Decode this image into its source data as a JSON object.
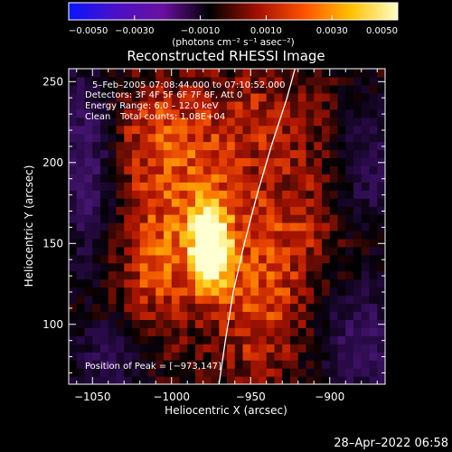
{
  "colorbar": {
    "ticks": [
      "-0.0050",
      "-0.0030",
      "-0.0010",
      "0.0010",
      "0.0030",
      "0.0050"
    ],
    "unit_label": "(photons cm⁻² s⁻¹ asec⁻²)",
    "range": [
      -0.005,
      0.005
    ],
    "stops": [
      "#0a14ff",
      "#4a10c8",
      "#6a10a0",
      "#000000",
      "#a01000",
      "#ff5000",
      "#ffc000",
      "#ffffc8"
    ]
  },
  "chart_data": {
    "type": "heatmap",
    "title": "Reconstructed RHESSI Image",
    "xlabel": "Heliocentric X (arcsec)",
    "ylabel": "Heliocentric Y (arcsec)",
    "xlim": [
      -1065,
      -865
    ],
    "ylim": [
      63,
      258
    ],
    "xticks": [
      -1050,
      -1000,
      -950,
      -900
    ],
    "yticks": [
      100,
      150,
      200,
      250
    ],
    "xtick_labels": [
      "−1050",
      "−1000",
      "−950",
      "−900"
    ],
    "ytick_labels": [
      "100",
      "150",
      "200",
      "250"
    ],
    "grid": false,
    "annotations": [
      "5–Feb–2005 07:08:44.000 to 07:10:52.000",
      "Detectors: 3F 4F 5F 6F 7F 8F, Att 0",
      "Energy Range: 6.0 – 12.0 keV",
      "Clean",
      "Total counts: 1.08E+04"
    ],
    "peak_label": "Position of Peak = [−973,147]",
    "peak": [
      -973,
      147
    ],
    "limb": [
      [
        -970,
        63
      ],
      [
        -966,
        90
      ],
      [
        -961,
        120
      ],
      [
        -954,
        150
      ],
      [
        -946,
        180
      ],
      [
        -937,
        210
      ],
      [
        -927,
        240
      ],
      [
        -922,
        258
      ]
    ],
    "sources": [
      {
        "x": -975,
        "y": 147,
        "sx": 9,
        "sy": 18,
        "amp": 1.0
      },
      {
        "x": -990,
        "y": 185,
        "sx": 28,
        "sy": 40,
        "amp": 0.42
      },
      {
        "x": -1010,
        "y": 130,
        "sx": 18,
        "sy": 28,
        "amp": 0.32
      },
      {
        "x": -945,
        "y": 110,
        "sx": 20,
        "sy": 30,
        "amp": 0.38
      },
      {
        "x": -925,
        "y": 165,
        "sx": 22,
        "sy": 30,
        "amp": 0.28
      },
      {
        "x": -940,
        "y": 230,
        "sx": 25,
        "sy": 20,
        "amp": 0.25
      },
      {
        "x": -1015,
        "y": 220,
        "sx": 18,
        "sy": 20,
        "amp": 0.22
      }
    ],
    "negative_regions": [
      {
        "x": -1055,
        "y": 200,
        "sx": 14,
        "sy": 45,
        "amp": 0.6
      },
      {
        "x": -880,
        "y": 90,
        "sx": 18,
        "sy": 25,
        "amp": 0.55
      },
      {
        "x": -875,
        "y": 200,
        "sx": 14,
        "sy": 30,
        "amp": 0.45
      },
      {
        "x": -1040,
        "y": 80,
        "sx": 18,
        "sy": 18,
        "amp": 0.4
      }
    ]
  },
  "timestamp": "28–Apr–2022 06:58"
}
